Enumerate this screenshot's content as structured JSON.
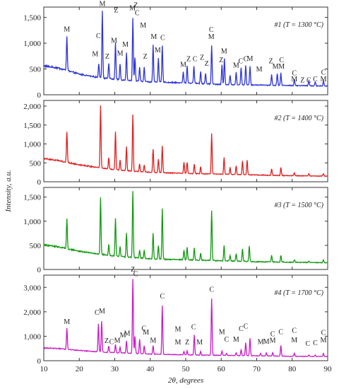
{
  "chart_data": {
    "type": "line",
    "xlabel": "2θ, degrees",
    "ylabel": "Intensity, a.u.",
    "xlim": [
      10,
      90
    ],
    "xticks": [
      10,
      20,
      30,
      40,
      50,
      60,
      70,
      80,
      90
    ],
    "phase_legend_note": "",
    "panels": [
      {
        "label": "#1 (T = 1300 °C)",
        "color": "#2e35d6",
        "ylim": [
          0,
          1700
        ],
        "yticks": [
          0,
          500,
          1000,
          1500
        ],
        "baseline": [
          [
            10,
            560
          ],
          [
            14,
            520
          ],
          [
            20,
            400
          ],
          [
            25,
            340
          ],
          [
            30,
            300
          ],
          [
            35,
            270
          ],
          [
            40,
            250
          ],
          [
            50,
            230
          ],
          [
            60,
            200
          ],
          [
            70,
            190
          ],
          [
            80,
            180
          ],
          [
            90,
            170
          ]
        ],
        "peaks": [
          [
            16.5,
            1130
          ],
          [
            25.5,
            610
          ],
          [
            26.5,
            1630
          ],
          [
            28.3,
            610
          ],
          [
            30.2,
            1000
          ],
          [
            31.5,
            600
          ],
          [
            33.3,
            820
          ],
          [
            35.1,
            1480
          ],
          [
            35.7,
            720
          ],
          [
            37.0,
            540
          ],
          [
            38.3,
            530
          ],
          [
            40.8,
            970
          ],
          [
            42.3,
            720
          ],
          [
            43.4,
            950
          ],
          [
            49.3,
            440
          ],
          [
            50.4,
            560
          ],
          [
            52.3,
            560
          ],
          [
            54.2,
            450
          ],
          [
            55.6,
            420
          ],
          [
            57.3,
            960
          ],
          [
            60.2,
            580
          ],
          [
            60.9,
            700
          ],
          [
            62.5,
            380
          ],
          [
            64.2,
            440
          ],
          [
            65.6,
            530
          ],
          [
            66.9,
            570
          ],
          [
            68.1,
            550
          ],
          [
            74.2,
            390
          ],
          [
            75.8,
            420
          ],
          [
            76.8,
            420
          ],
          [
            80.6,
            300
          ],
          [
            84.7,
            270
          ],
          [
            86.5,
            250
          ],
          [
            88.8,
            260
          ]
        ],
        "annotations": [
          {
            "x": 16.5,
            "y": 1230,
            "text": "M"
          },
          {
            "x": 24.5,
            "y": 750,
            "text": "M"
          },
          {
            "x": 25.4,
            "y": 1100,
            "text": "C"
          },
          {
            "x": 26.5,
            "y": 1720,
            "text": "M"
          },
          {
            "x": 27.9,
            "y": 700,
            "text": "Z"
          },
          {
            "x": 29.8,
            "y": 1010,
            "text": "M"
          },
          {
            "x": 30.4,
            "y": 1600,
            "text": "Z"
          },
          {
            "x": 31.5,
            "y": 760,
            "text": "M"
          },
          {
            "x": 33.0,
            "y": 930,
            "text": "M"
          },
          {
            "x": 35.0,
            "y": 1640,
            "text": "M"
          },
          {
            "x": 35.9,
            "y": 1690,
            "text": "Z"
          },
          {
            "x": 36.3,
            "y": 1540,
            "text": "C"
          },
          {
            "x": 38.0,
            "y": 1300,
            "text": "M"
          },
          {
            "x": 38.6,
            "y": 700,
            "text": "Z"
          },
          {
            "x": 41.0,
            "y": 1080,
            "text": "M"
          },
          {
            "x": 42.1,
            "y": 820,
            "text": "M"
          },
          {
            "x": 43.5,
            "y": 1060,
            "text": "C"
          },
          {
            "x": 49.3,
            "y": 540,
            "text": "M"
          },
          {
            "x": 50.8,
            "y": 650,
            "text": "Z"
          },
          {
            "x": 52.6,
            "y": 650,
            "text": "C"
          },
          {
            "x": 54.6,
            "y": 680,
            "text": "Z"
          },
          {
            "x": 55.9,
            "y": 560,
            "text": "Z"
          },
          {
            "x": 57.2,
            "y": 1220,
            "text": "C"
          },
          {
            "x": 57.2,
            "y": 1080,
            "text": "M"
          },
          {
            "x": 60.8,
            "y": 800,
            "text": "M"
          },
          {
            "x": 60.0,
            "y": 630,
            "text": "Z"
          },
          {
            "x": 64.2,
            "y": 530,
            "text": "M"
          },
          {
            "x": 65.5,
            "y": 610,
            "text": "C"
          },
          {
            "x": 66.9,
            "y": 650,
            "text": "C"
          },
          {
            "x": 68.1,
            "y": 660,
            "text": "M"
          },
          {
            "x": 70.7,
            "y": 450,
            "text": "M"
          },
          {
            "x": 74.0,
            "y": 610,
            "text": "Z"
          },
          {
            "x": 75.3,
            "y": 510,
            "text": "M"
          },
          {
            "x": 77.0,
            "y": 630,
            "text": "C"
          },
          {
            "x": 77.0,
            "y": 510,
            "text": "M"
          },
          {
            "x": 80.6,
            "y": 380,
            "text": "C"
          },
          {
            "x": 80.6,
            "y": 260,
            "text": "M"
          },
          {
            "x": 82.9,
            "y": 240,
            "text": "Z"
          },
          {
            "x": 84.7,
            "y": 240,
            "text": "C"
          },
          {
            "x": 86.5,
            "y": 260,
            "text": "C"
          },
          {
            "x": 88.8,
            "y": 390,
            "text": "C"
          },
          {
            "x": 88.8,
            "y": 260,
            "text": "M"
          }
        ]
      },
      {
        "label": "#2 (T = 1400 °C)",
        "color": "#e02020",
        "ylim": [
          0,
          2150
        ],
        "yticks": [
          0,
          500,
          1000,
          1500,
          2000
        ],
        "baseline": [
          [
            10,
            620
          ],
          [
            14,
            560
          ],
          [
            20,
            450
          ],
          [
            25,
            380
          ],
          [
            30,
            320
          ],
          [
            35,
            280
          ],
          [
            40,
            250
          ],
          [
            50,
            220
          ],
          [
            60,
            200
          ],
          [
            70,
            180
          ],
          [
            80,
            160
          ],
          [
            90,
            150
          ]
        ],
        "peaks": [
          [
            16.5,
            1330
          ],
          [
            26.0,
            2020
          ],
          [
            28.3,
            640
          ],
          [
            30.2,
            1330
          ],
          [
            31.5,
            580
          ],
          [
            33.3,
            920
          ],
          [
            35.1,
            1780
          ],
          [
            37.0,
            480
          ],
          [
            38.3,
            440
          ],
          [
            40.8,
            870
          ],
          [
            42.3,
            600
          ],
          [
            43.4,
            940
          ],
          [
            49.5,
            520
          ],
          [
            50.4,
            520
          ],
          [
            52.4,
            470
          ],
          [
            54.2,
            400
          ],
          [
            57.3,
            1280
          ],
          [
            60.8,
            640
          ],
          [
            62.5,
            380
          ],
          [
            64.2,
            420
          ],
          [
            66.0,
            560
          ],
          [
            67.3,
            570
          ],
          [
            74.2,
            340
          ],
          [
            76.8,
            380
          ],
          [
            80.6,
            240
          ],
          [
            84.7,
            220
          ],
          [
            88.8,
            220
          ]
        ],
        "annotations": []
      },
      {
        "label": "#3 (T = 1500 °C)",
        "color": "#139a13",
        "ylim": [
          0,
          1700
        ],
        "yticks": [
          0,
          500,
          1000,
          1500
        ],
        "baseline": [
          [
            10,
            510
          ],
          [
            14,
            470
          ],
          [
            20,
            380
          ],
          [
            25,
            320
          ],
          [
            30,
            280
          ],
          [
            35,
            250
          ],
          [
            40,
            220
          ],
          [
            50,
            200
          ],
          [
            60,
            180
          ],
          [
            70,
            160
          ],
          [
            80,
            150
          ],
          [
            90,
            140
          ]
        ],
        "peaks": [
          [
            16.5,
            1050
          ],
          [
            26.0,
            1480
          ],
          [
            28.3,
            520
          ],
          [
            30.2,
            1070
          ],
          [
            31.5,
            480
          ],
          [
            33.3,
            760
          ],
          [
            35.1,
            1620
          ],
          [
            37.0,
            400
          ],
          [
            38.3,
            400
          ],
          [
            40.8,
            760
          ],
          [
            42.3,
            500
          ],
          [
            43.4,
            1270
          ],
          [
            49.5,
            400
          ],
          [
            50.4,
            470
          ],
          [
            52.4,
            440
          ],
          [
            54.2,
            340
          ],
          [
            57.3,
            1220
          ],
          [
            60.8,
            500
          ],
          [
            62.5,
            300
          ],
          [
            64.2,
            330
          ],
          [
            66.0,
            430
          ],
          [
            67.9,
            480
          ],
          [
            74.2,
            290
          ],
          [
            76.8,
            300
          ],
          [
            80.6,
            200
          ],
          [
            84.7,
            180
          ],
          [
            88.8,
            200
          ]
        ],
        "annotations": []
      },
      {
        "label": "#4 (T = 1700 °C)",
        "color": "#c71cc7",
        "ylim": [
          0,
          3500
        ],
        "yticks": [
          0,
          1000,
          2000,
          3000
        ],
        "baseline": [
          [
            10,
            520
          ],
          [
            14,
            500
          ],
          [
            20,
            420
          ],
          [
            25,
            370
          ],
          [
            30,
            330
          ],
          [
            35,
            300
          ],
          [
            40,
            270
          ],
          [
            50,
            240
          ],
          [
            60,
            220
          ],
          [
            70,
            200
          ],
          [
            80,
            180
          ],
          [
            90,
            170
          ]
        ],
        "peaks": [
          [
            16.5,
            1330
          ],
          [
            25.4,
            1500
          ],
          [
            26.3,
            1620
          ],
          [
            28.3,
            600
          ],
          [
            30.2,
            660
          ],
          [
            31.5,
            560
          ],
          [
            33.3,
            820
          ],
          [
            35.1,
            3330
          ],
          [
            35.7,
            1000
          ],
          [
            37.0,
            880
          ],
          [
            38.3,
            600
          ],
          [
            40.8,
            620
          ],
          [
            43.4,
            2250
          ],
          [
            49.5,
            370
          ],
          [
            50.4,
            400
          ],
          [
            52.4,
            1060
          ],
          [
            54.2,
            380
          ],
          [
            57.3,
            2540
          ],
          [
            60.2,
            400
          ],
          [
            61.5,
            300
          ],
          [
            64.2,
            320
          ],
          [
            65.6,
            450
          ],
          [
            66.9,
            740
          ],
          [
            68.1,
            920
          ],
          [
            71.1,
            300
          ],
          [
            72.7,
            320
          ],
          [
            74.5,
            330
          ],
          [
            76.8,
            620
          ],
          [
            80.6,
            300
          ],
          [
            84.7,
            240
          ],
          [
            86.5,
            230
          ],
          [
            88.8,
            290
          ]
        ],
        "annotations": [
          {
            "x": 16.5,
            "y": 1510,
            "text": "M"
          },
          {
            "x": 25.0,
            "y": 1880,
            "text": "C"
          },
          {
            "x": 26.4,
            "y": 1940,
            "text": "M"
          },
          {
            "x": 27.7,
            "y": 730,
            "text": "Z"
          },
          {
            "x": 29.1,
            "y": 680,
            "text": "C"
          },
          {
            "x": 30.7,
            "y": 740,
            "text": "M"
          },
          {
            "x": 32.3,
            "y": 960,
            "text": "M"
          },
          {
            "x": 33.5,
            "y": 1020,
            "text": "M"
          },
          {
            "x": 35.1,
            "y": 3640,
            "text": "Z"
          },
          {
            "x": 35.9,
            "y": 3460,
            "text": "C"
          },
          {
            "x": 38.2,
            "y": 1230,
            "text": "C"
          },
          {
            "x": 38.8,
            "y": 1070,
            "text": "M"
          },
          {
            "x": 40.8,
            "y": 740,
            "text": "M"
          },
          {
            "x": 43.4,
            "y": 2540,
            "text": "C"
          },
          {
            "x": 47.8,
            "y": 1200,
            "text": "M"
          },
          {
            "x": 47.8,
            "y": 660,
            "text": "M"
          },
          {
            "x": 50.4,
            "y": 670,
            "text": "Z"
          },
          {
            "x": 52.2,
            "y": 1280,
            "text": "C"
          },
          {
            "x": 53.9,
            "y": 670,
            "text": "M"
          },
          {
            "x": 57.3,
            "y": 2820,
            "text": "C"
          },
          {
            "x": 60.2,
            "y": 1080,
            "text": "M"
          },
          {
            "x": 61.5,
            "y": 780,
            "text": "C"
          },
          {
            "x": 64.2,
            "y": 780,
            "text": "M"
          },
          {
            "x": 65.6,
            "y": 1220,
            "text": "C"
          },
          {
            "x": 66.9,
            "y": 1320,
            "text": "C"
          },
          {
            "x": 71.1,
            "y": 680,
            "text": "M"
          },
          {
            "x": 72.7,
            "y": 690,
            "text": "M"
          },
          {
            "x": 74.5,
            "y": 1000,
            "text": "C"
          },
          {
            "x": 74.5,
            "y": 740,
            "text": "M"
          },
          {
            "x": 76.8,
            "y": 1080,
            "text": "C"
          },
          {
            "x": 80.6,
            "y": 1140,
            "text": "C"
          },
          {
            "x": 80.6,
            "y": 750,
            "text": "M"
          },
          {
            "x": 84.4,
            "y": 610,
            "text": "C"
          },
          {
            "x": 86.5,
            "y": 630,
            "text": "C"
          },
          {
            "x": 88.8,
            "y": 1060,
            "text": "C"
          },
          {
            "x": 88.8,
            "y": 750,
            "text": "M"
          }
        ]
      }
    ]
  }
}
